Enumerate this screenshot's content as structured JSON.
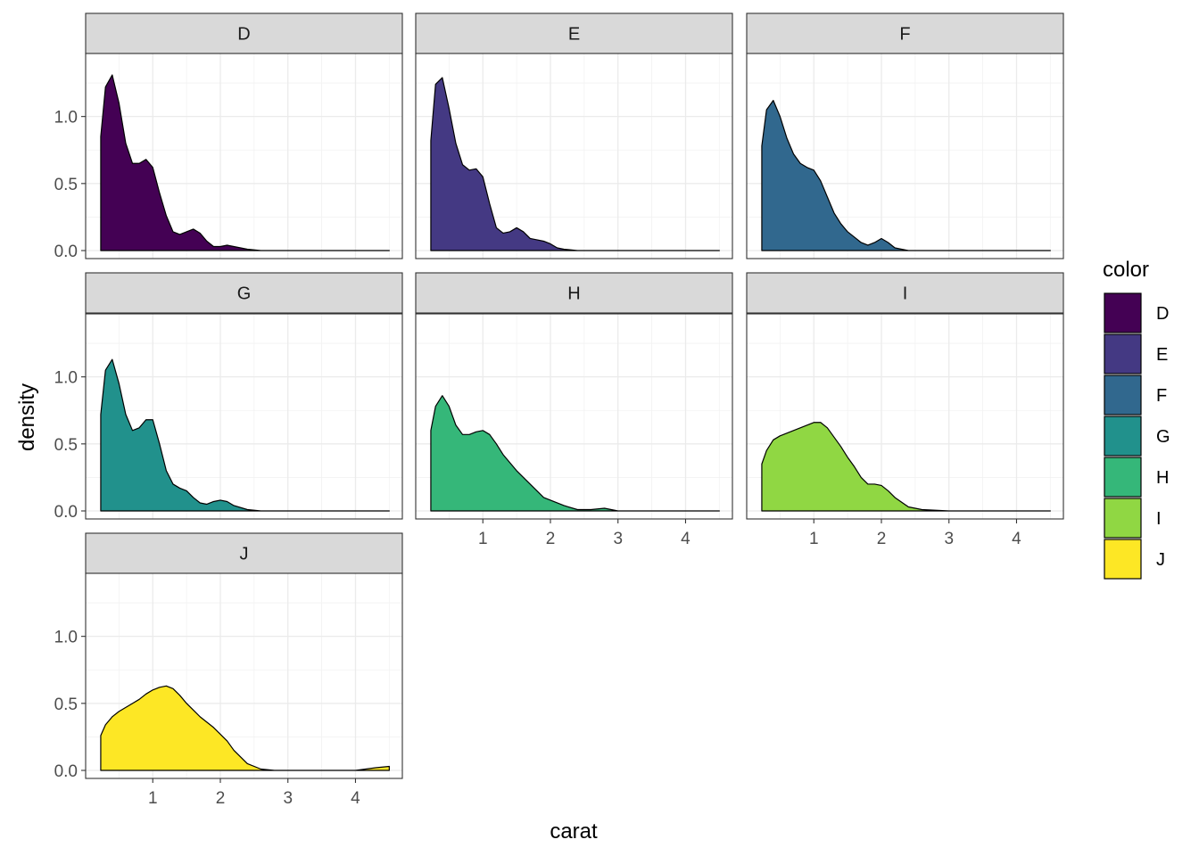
{
  "chart_data": {
    "type": "area",
    "subtype": "faceted-density",
    "xlabel": "carat",
    "ylabel": "density",
    "xlim": [
      0.2,
      4.5
    ],
    "ylim": [
      0,
      1.4
    ],
    "x_ticks": [
      1,
      2,
      3,
      4
    ],
    "x_tick_labels": [
      "1",
      "2",
      "3",
      "4"
    ],
    "y_ticks": [
      0,
      0.5,
      1.0
    ],
    "y_tick_labels": [
      "0.0",
      "0.5",
      "1.0"
    ],
    "grid": true,
    "facet_layout": "3 columns x 3 rows",
    "legend": {
      "title": "color",
      "position": "right",
      "entries": [
        "D",
        "E",
        "F",
        "G",
        "H",
        "I",
        "J"
      ]
    },
    "series": [
      {
        "name": "D",
        "color": "#440154",
        "x": [
          0.23,
          0.3,
          0.4,
          0.5,
          0.6,
          0.7,
          0.8,
          0.9,
          1.0,
          1.1,
          1.2,
          1.3,
          1.4,
          1.5,
          1.6,
          1.7,
          1.8,
          1.9,
          2.0,
          2.1,
          2.2,
          2.4,
          2.6,
          3.0,
          4.5
        ],
        "y": [
          0.85,
          1.22,
          1.31,
          1.1,
          0.8,
          0.65,
          0.65,
          0.68,
          0.62,
          0.43,
          0.26,
          0.14,
          0.12,
          0.14,
          0.16,
          0.13,
          0.07,
          0.03,
          0.03,
          0.04,
          0.03,
          0.01,
          0.0,
          0.0,
          0.0
        ]
      },
      {
        "name": "E",
        "color": "#443983",
        "x": [
          0.23,
          0.3,
          0.4,
          0.5,
          0.6,
          0.7,
          0.8,
          0.9,
          1.0,
          1.1,
          1.2,
          1.3,
          1.4,
          1.5,
          1.6,
          1.7,
          1.8,
          1.9,
          2.0,
          2.1,
          2.2,
          2.4,
          2.6,
          3.0,
          4.5
        ],
        "y": [
          0.82,
          1.24,
          1.29,
          1.06,
          0.8,
          0.64,
          0.6,
          0.61,
          0.55,
          0.35,
          0.17,
          0.13,
          0.14,
          0.17,
          0.14,
          0.09,
          0.08,
          0.07,
          0.05,
          0.02,
          0.01,
          0.0,
          0.0,
          0.0,
          0.0
        ]
      },
      {
        "name": "F",
        "color": "#31688e",
        "x": [
          0.23,
          0.3,
          0.4,
          0.5,
          0.6,
          0.7,
          0.8,
          0.9,
          1.0,
          1.1,
          1.2,
          1.3,
          1.4,
          1.5,
          1.6,
          1.7,
          1.8,
          1.9,
          2.0,
          2.1,
          2.2,
          2.4,
          2.6,
          3.0,
          4.5
        ],
        "y": [
          0.78,
          1.05,
          1.12,
          1.0,
          0.84,
          0.72,
          0.65,
          0.62,
          0.6,
          0.52,
          0.4,
          0.28,
          0.2,
          0.14,
          0.1,
          0.06,
          0.04,
          0.06,
          0.09,
          0.06,
          0.02,
          0.0,
          0.0,
          0.0,
          0.0
        ]
      },
      {
        "name": "G",
        "color": "#21918c",
        "x": [
          0.23,
          0.3,
          0.4,
          0.5,
          0.6,
          0.7,
          0.8,
          0.9,
          1.0,
          1.1,
          1.2,
          1.3,
          1.4,
          1.5,
          1.6,
          1.7,
          1.8,
          1.9,
          2.0,
          2.1,
          2.2,
          2.4,
          2.6,
          3.0,
          4.5
        ],
        "y": [
          0.72,
          1.05,
          1.13,
          0.95,
          0.72,
          0.6,
          0.62,
          0.68,
          0.68,
          0.5,
          0.3,
          0.2,
          0.17,
          0.15,
          0.1,
          0.06,
          0.05,
          0.07,
          0.08,
          0.07,
          0.04,
          0.01,
          0.0,
          0.0,
          0.0
        ]
      },
      {
        "name": "H",
        "color": "#35b779",
        "x": [
          0.23,
          0.3,
          0.4,
          0.5,
          0.6,
          0.7,
          0.8,
          0.9,
          1.0,
          1.1,
          1.2,
          1.3,
          1.4,
          1.5,
          1.6,
          1.7,
          1.8,
          1.9,
          2.0,
          2.1,
          2.2,
          2.4,
          2.6,
          2.8,
          3.0,
          4.5
        ],
        "y": [
          0.6,
          0.78,
          0.86,
          0.78,
          0.64,
          0.57,
          0.57,
          0.59,
          0.6,
          0.57,
          0.5,
          0.42,
          0.36,
          0.3,
          0.25,
          0.2,
          0.15,
          0.1,
          0.08,
          0.06,
          0.04,
          0.01,
          0.01,
          0.02,
          0.0,
          0.0
        ]
      },
      {
        "name": "I",
        "color": "#90d743",
        "x": [
          0.23,
          0.3,
          0.4,
          0.5,
          0.6,
          0.7,
          0.8,
          0.9,
          1.0,
          1.1,
          1.2,
          1.3,
          1.4,
          1.5,
          1.6,
          1.7,
          1.8,
          1.9,
          2.0,
          2.1,
          2.2,
          2.4,
          2.6,
          3.0,
          4.5
        ],
        "y": [
          0.35,
          0.45,
          0.53,
          0.56,
          0.58,
          0.6,
          0.62,
          0.64,
          0.66,
          0.66,
          0.62,
          0.55,
          0.48,
          0.4,
          0.33,
          0.25,
          0.2,
          0.2,
          0.19,
          0.15,
          0.1,
          0.03,
          0.01,
          0.0,
          0.0
        ]
      },
      {
        "name": "J",
        "color": "#fde725",
        "x": [
          0.23,
          0.3,
          0.4,
          0.5,
          0.6,
          0.7,
          0.8,
          0.9,
          1.0,
          1.1,
          1.2,
          1.3,
          1.4,
          1.5,
          1.6,
          1.7,
          1.8,
          1.9,
          2.0,
          2.1,
          2.2,
          2.4,
          2.6,
          2.8,
          3.0,
          4.0,
          4.3,
          4.5
        ],
        "y": [
          0.26,
          0.34,
          0.4,
          0.44,
          0.47,
          0.5,
          0.53,
          0.57,
          0.6,
          0.62,
          0.63,
          0.61,
          0.56,
          0.5,
          0.45,
          0.4,
          0.36,
          0.32,
          0.27,
          0.22,
          0.15,
          0.05,
          0.01,
          0.0,
          0.0,
          0.0,
          0.02,
          0.03
        ]
      }
    ]
  }
}
